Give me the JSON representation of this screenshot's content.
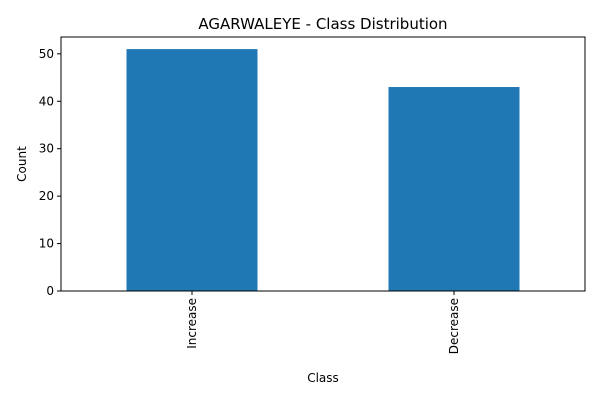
{
  "chart_data": {
    "type": "bar",
    "title": "AGARWALEYE - Class Distribution",
    "xlabel": "Class",
    "ylabel": "Count",
    "categories": [
      "Increase",
      "Decrease"
    ],
    "values": [
      51,
      43
    ],
    "ylim": [
      0,
      53.55
    ],
    "yticks": [
      0,
      10,
      20,
      30,
      40,
      50
    ],
    "bar_color": "#1f77b4",
    "grid": false,
    "legend": "none",
    "xtick_rotation": "vertical"
  }
}
